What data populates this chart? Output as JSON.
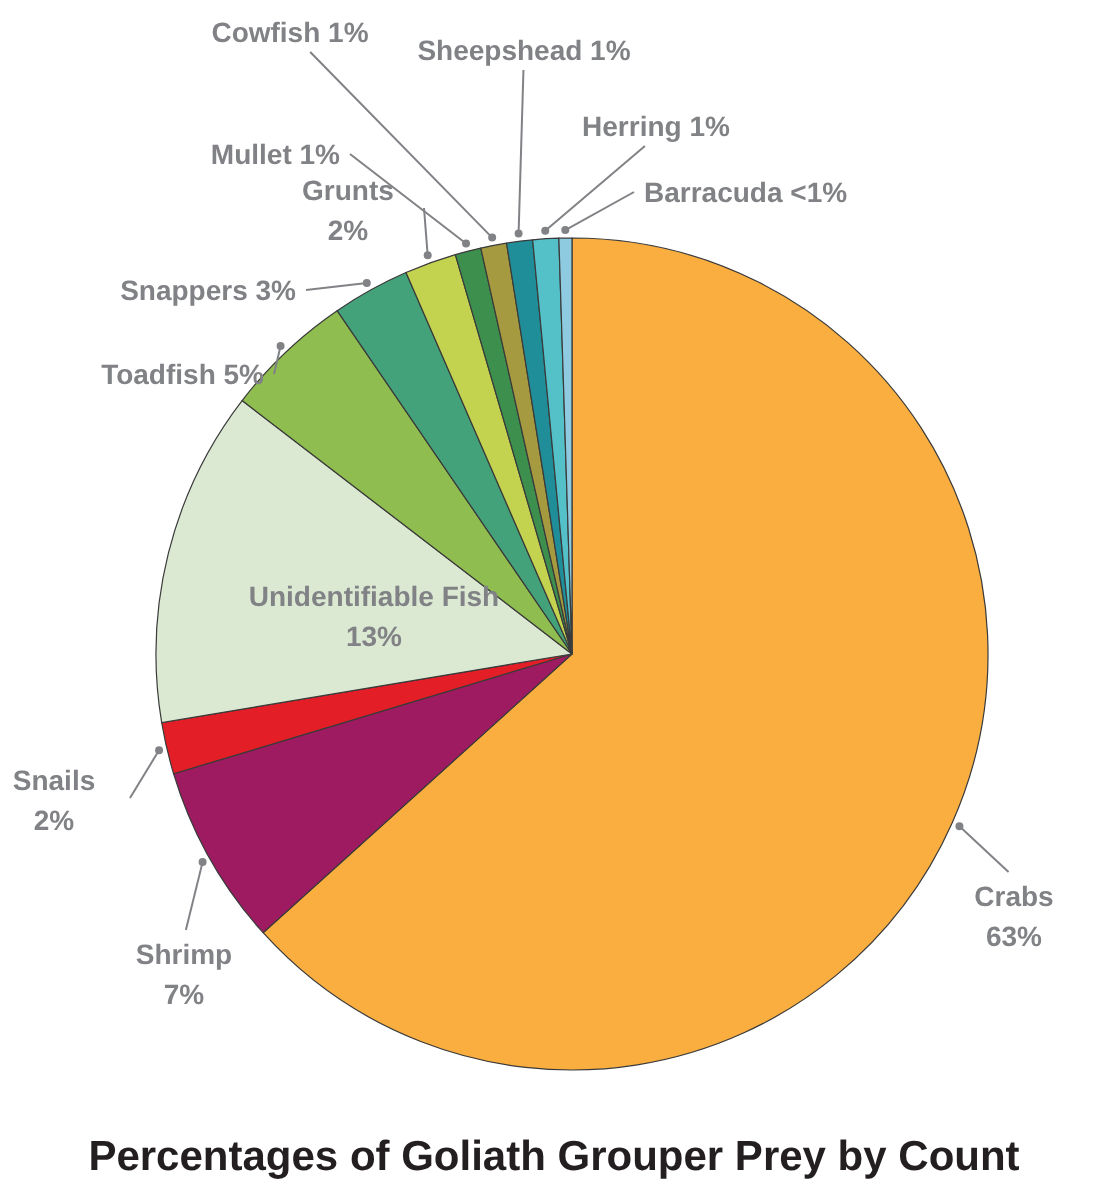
{
  "chart_data": {
    "type": "pie",
    "title": "Percentages of Goliath Grouper Prey by Count",
    "categories": [
      "Crabs",
      "Shrimp",
      "Snails",
      "Unidentifiable Fish",
      "Toadfish",
      "Snappers",
      "Grunts",
      "Mullet",
      "Cowfish",
      "Sheepshead",
      "Herring",
      "Barracuda"
    ],
    "values": [
      63,
      7,
      2,
      13,
      5,
      3,
      2,
      1,
      1,
      1,
      1,
      0.5
    ],
    "value_labels": [
      "63%",
      "7%",
      "2%",
      "13%",
      "5%",
      "3%",
      "2%",
      "1%",
      "1%",
      "1%",
      "1%",
      "<1%"
    ],
    "colors": [
      "#f9ae3f",
      "#9e1b61",
      "#e41e26",
      "#dbe8d2",
      "#8fbd4f",
      "#44a27a",
      "#c3d350",
      "#3d8f4d",
      "#a59a3f",
      "#1f8e98",
      "#54c0c7",
      "#8fcbe0"
    ]
  }
}
